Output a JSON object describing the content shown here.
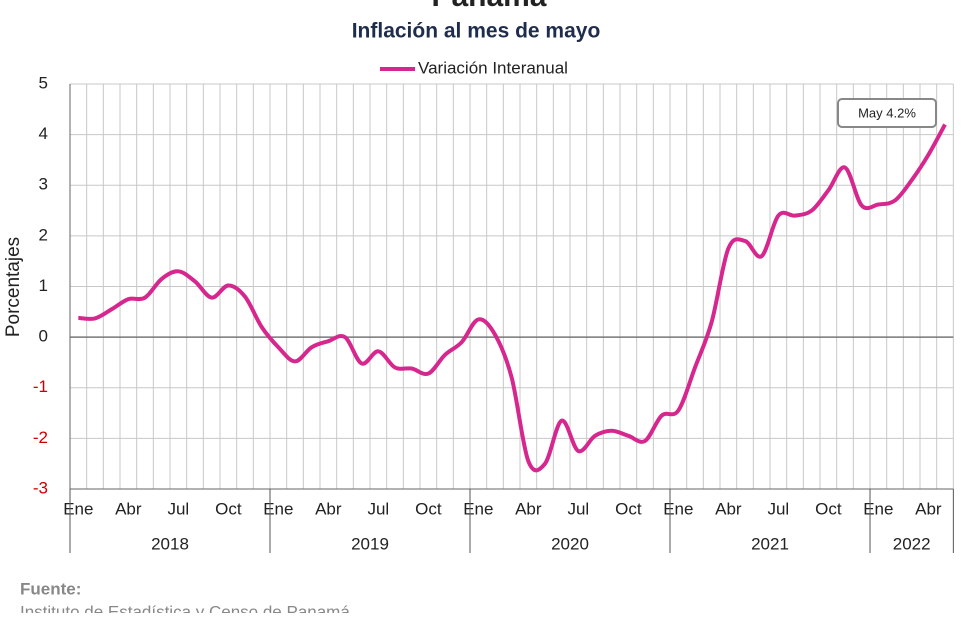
{
  "chart_data": {
    "type": "line",
    "title": "Panamá",
    "subtitle": "Inflación al mes de mayo",
    "y_label": "Porcentajes",
    "categories": [
      "Ene",
      null,
      null,
      "Abr",
      null,
      null,
      "Jul",
      null,
      null,
      "Oct",
      null,
      null,
      "Ene",
      null,
      null,
      "Abr",
      null,
      null,
      "Jul",
      null,
      null,
      "Oct",
      null,
      null,
      "Ene",
      null,
      null,
      "Abr",
      null,
      null,
      "Jul",
      null,
      null,
      "Oct",
      null,
      null,
      "Ene",
      null,
      null,
      "Abr",
      null,
      null,
      "Jul",
      null,
      null,
      "Oct",
      null,
      null,
      "Ene",
      null,
      null,
      "Abr",
      null
    ],
    "year_groups": [
      "2018",
      "2019",
      "2020",
      "2021",
      "2022"
    ],
    "series": [
      {
        "name": "Variación Interanual",
        "color": "#d6278e",
        "values": [
          0.38,
          0.37,
          0.55,
          0.75,
          0.78,
          1.15,
          1.3,
          1.1,
          0.78,
          1.02,
          0.8,
          0.2,
          -0.2,
          -0.48,
          -0.2,
          -0.08,
          0.0,
          -0.52,
          -0.28,
          -0.6,
          -0.62,
          -0.72,
          -0.35,
          -0.1,
          0.35,
          0.05,
          -0.8,
          -2.45,
          -2.5,
          -1.65,
          -2.25,
          -1.95,
          -1.85,
          -1.95,
          -2.05,
          -1.55,
          -1.45,
          -0.6,
          0.3,
          1.75,
          1.9,
          1.6,
          2.4,
          2.4,
          2.5,
          2.9,
          3.35,
          2.6,
          2.62,
          2.7,
          3.1,
          3.6,
          4.2
        ]
      }
    ],
    "ylim": [
      -3,
      5
    ],
    "yticks": [
      -3,
      -2,
      -1,
      0,
      1,
      2,
      3,
      4,
      5
    ],
    "negative_tick_color": "#cc0000",
    "grid": true,
    "legend": "top",
    "annotation": "May 4.2%",
    "source_label": "Fuente:",
    "source": "Instituto de Estadística y Censo de Panamá"
  }
}
